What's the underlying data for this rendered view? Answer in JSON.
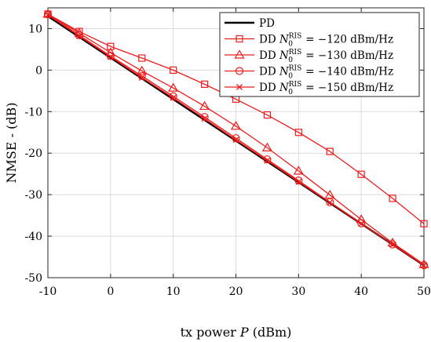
{
  "chart_data": {
    "type": "line",
    "xlabel_text": "tx power ",
    "xlabel_var": "P",
    "xlabel_unit": " (dBm)",
    "ylabel": "NMSE - (dB)",
    "xlim": [
      -10,
      50
    ],
    "ylim": [
      -50,
      15
    ],
    "xticks": [
      -10,
      0,
      10,
      20,
      30,
      40,
      50
    ],
    "yticks": [
      -50,
      -40,
      -30,
      -20,
      -10,
      0,
      10
    ],
    "grid": true,
    "legend_position": "top-right",
    "x": [
      -10,
      -5,
      0,
      5,
      10,
      15,
      20,
      25,
      30,
      35,
      40,
      45,
      50
    ],
    "series": [
      {
        "name": "PD",
        "color": "#000000",
        "marker": "none",
        "values": [
          13.0,
          8.0,
          3.0,
          -2.0,
          -7.0,
          -12.0,
          -17.0,
          -22.0,
          -27.0,
          -32.0,
          -37.0,
          -42.0,
          -47.0
        ]
      },
      {
        "name": "DD N0RIS = −120 dBm/Hz",
        "legend": {
          "prefix": "DD ",
          "var": "N",
          "sub": "0",
          "sup": "RIS",
          "rest": " = −120 dBm/Hz"
        },
        "color": "#ee1c1c",
        "marker": "square",
        "values": [
          13.5,
          9.3,
          5.7,
          2.9,
          0.0,
          -3.4,
          -7.0,
          -10.8,
          -15.0,
          -19.6,
          -25.1,
          -30.9,
          -37.0
        ]
      },
      {
        "name": "DD N0RIS = −130 dBm/Hz",
        "legend": {
          "prefix": "DD ",
          "var": "N",
          "sub": "0",
          "sup": "RIS",
          "rest": " = −130 dBm/Hz"
        },
        "color": "#ee1c1c",
        "marker": "triangle",
        "values": [
          13.5,
          8.9,
          4.2,
          -0.2,
          -4.3,
          -8.7,
          -13.5,
          -18.7,
          -24.3,
          -30.1,
          -36.0,
          -41.6,
          -46.8
        ]
      },
      {
        "name": "DD N0RIS = −140 dBm/Hz",
        "legend": {
          "prefix": "DD ",
          "var": "N",
          "sub": "0",
          "sup": "RIS",
          "rest": " = −140 dBm/Hz"
        },
        "color": "#ee1c1c",
        "marker": "circle",
        "values": [
          13.4,
          8.4,
          3.4,
          -1.4,
          -6.3,
          -11.3,
          -16.4,
          -21.5,
          -26.6,
          -31.8,
          -36.9,
          -42.0,
          -47.0
        ]
      },
      {
        "name": "DD N0RIS = −150 dBm/Hz",
        "legend": {
          "prefix": "DD ",
          "var": "N",
          "sub": "0",
          "sup": "RIS",
          "rest": " = −150 dBm/Hz"
        },
        "color": "#ee1c1c",
        "marker": "x",
        "values": [
          13.3,
          8.2,
          3.2,
          -1.8,
          -6.7,
          -11.7,
          -16.8,
          -21.8,
          -26.9,
          -31.9,
          -37.0,
          -42.0,
          -47.0
        ]
      }
    ]
  }
}
